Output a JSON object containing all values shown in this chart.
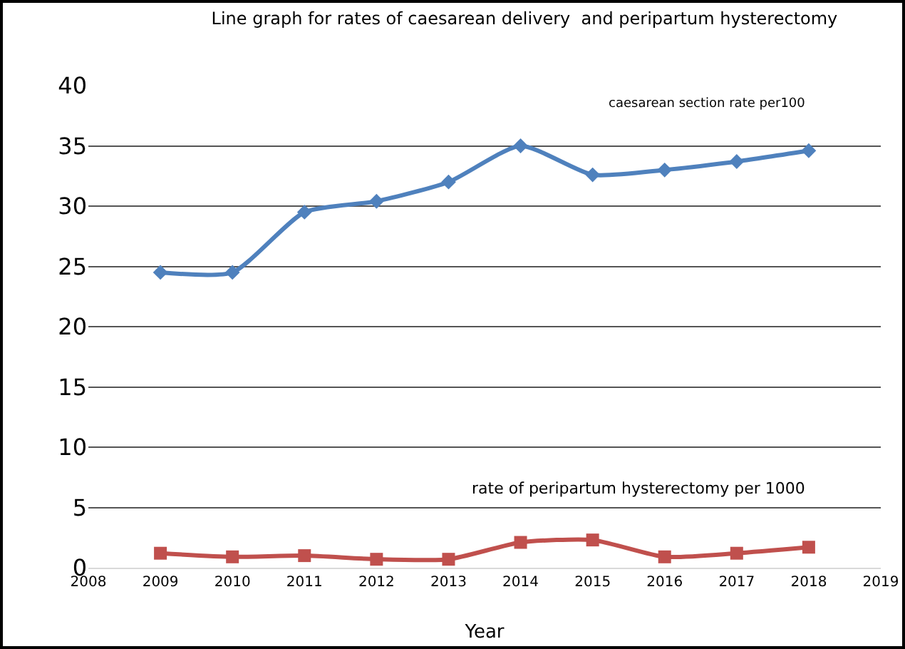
{
  "chart_data": {
    "type": "line",
    "title": "Line graph for rates of caesarean delivery  and peripartum hysterectomy",
    "xlabel": "Year",
    "x": [
      2009,
      2010,
      2011,
      2012,
      2013,
      2014,
      2015,
      2016,
      2017,
      2018
    ],
    "series": [
      {
        "name": "caesarean section rate per100",
        "color": "#4f81bd",
        "marker": "diamond",
        "values": [
          24.5,
          24.5,
          29.5,
          30.4,
          32,
          35,
          32.6,
          33,
          33.7,
          34.6
        ]
      },
      {
        "name": "rate of peripartum hysterectomy per 1000",
        "color": "#c0504d",
        "marker": "square",
        "values": [
          1.2,
          0.9,
          1.0,
          0.7,
          0.7,
          2.1,
          2.3,
          0.9,
          1.2,
          1.7
        ]
      }
    ],
    "xlim": [
      2008,
      2019
    ],
    "xticks": [
      2008,
      2009,
      2010,
      2011,
      2012,
      2013,
      2014,
      2015,
      2016,
      2017,
      2018,
      2019
    ],
    "ylim": [
      0,
      40
    ],
    "yticks": [
      0,
      5,
      10,
      15,
      20,
      25,
      30,
      35,
      40
    ],
    "grid": "y",
    "legend": false
  }
}
